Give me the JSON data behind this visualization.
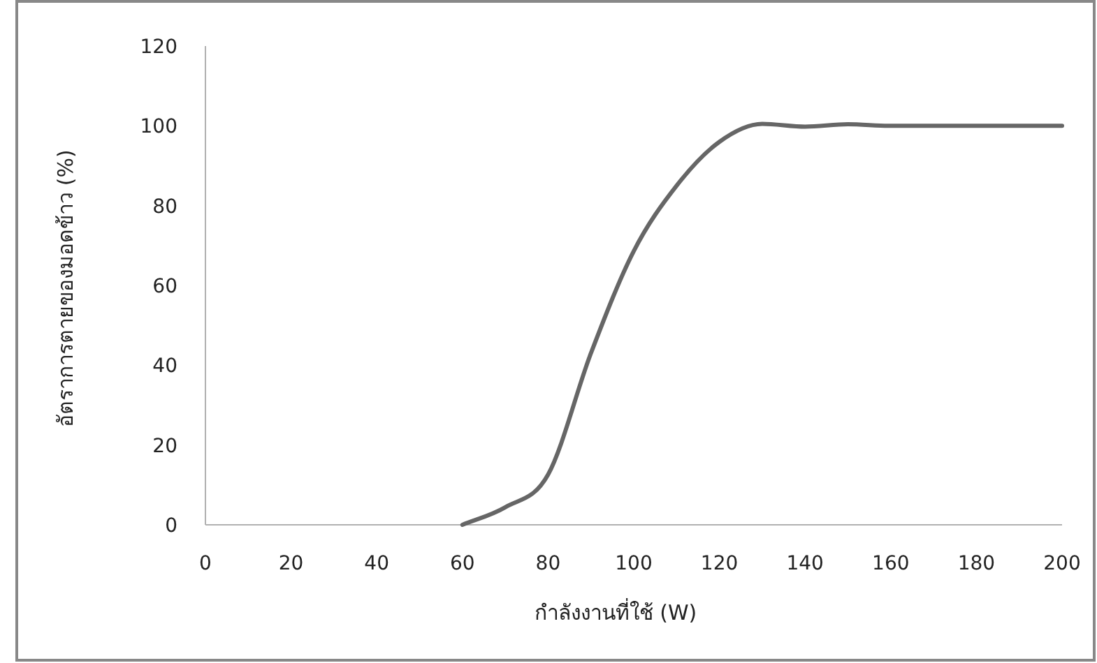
{
  "chart_data": {
    "type": "line",
    "xlabel": "กำลังงานที่ใช้ (W)",
    "ylabel": "อัตราการตายของมอดข้าว (%)",
    "x": [
      60,
      70,
      80,
      90,
      100,
      110,
      120,
      130,
      140,
      150,
      160,
      170,
      180,
      190,
      200
    ],
    "series": [
      {
        "color": "#666666",
        "values": [
          0,
          4.4,
          12.6,
          43,
          68.6,
          85,
          96,
          100.5,
          99.8,
          100.4,
          100,
          100,
          100,
          100,
          100
        ]
      }
    ],
    "xlim": [
      0,
      200
    ],
    "xticks": [
      0,
      20,
      40,
      60,
      80,
      100,
      120,
      140,
      160,
      180,
      200
    ],
    "ylim": [
      0,
      120
    ],
    "yticks": [
      0,
      20,
      40,
      60,
      80,
      100,
      120
    ]
  }
}
